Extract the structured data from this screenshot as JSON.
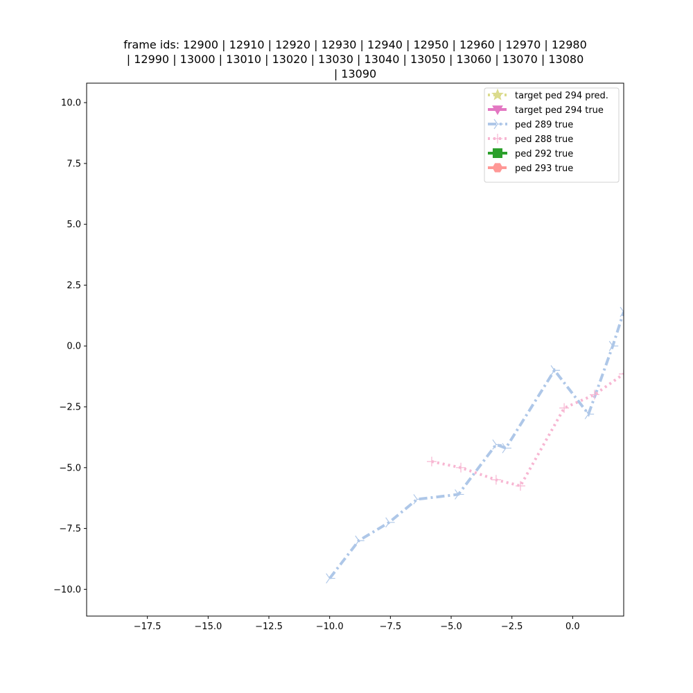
{
  "chart_data": {
    "type": "line",
    "title_lines": [
      "frame ids: 12900 | 12910 | 12920 | 12930 | 12940 | 12950 | 12960 | 12970 | 12980",
      "| 12990 | 13000 | 13010 | 13020 | 13030 | 13040 | 13050 | 13060 | 13070 | 13080",
      "| 13090"
    ],
    "xlim": [
      -20.0,
      2.1
    ],
    "ylim": [
      -11.1,
      10.8
    ],
    "xticks": [
      -17.5,
      -15.0,
      -12.5,
      -10.0,
      -7.5,
      -5.0,
      -2.5,
      0.0
    ],
    "yticks": [
      -10.0,
      -7.5,
      -5.0,
      -2.5,
      0.0,
      2.5,
      5.0,
      7.5,
      10.0
    ],
    "xtick_labels": [
      "−17.5",
      "−15.0",
      "−12.5",
      "−10.0",
      "−7.5",
      "−5.0",
      "−2.5",
      "0.0"
    ],
    "ytick_labels": [
      "−10.0",
      "−7.5",
      "−5.0",
      "−2.5",
      "0.0",
      "2.5",
      "5.0",
      "7.5",
      "10.0"
    ],
    "grid": false,
    "legend_position": "top-right",
    "series": [
      {
        "name": "target ped 294 pred.",
        "color": "#dbdb8d",
        "dash": "dotted",
        "marker": "star",
        "points": []
      },
      {
        "name": "target ped 294 true",
        "color": "#e377c2",
        "dash": "dashed",
        "marker": "triangle-down",
        "points": []
      },
      {
        "name": "ped 289 true",
        "color": "#aec7e8",
        "dash": "dashdot",
        "marker": "tri-right",
        "points": [
          [
            -10.0,
            -9.55
          ],
          [
            -8.8,
            -8.0
          ],
          [
            -7.55,
            -7.25
          ],
          [
            -6.4,
            -6.3
          ],
          [
            -4.7,
            -6.1
          ],
          [
            -3.15,
            -4.05
          ],
          [
            -2.75,
            -4.2
          ],
          [
            -0.75,
            -1.0
          ],
          [
            0.65,
            -2.8
          ],
          [
            1.65,
            0.0
          ],
          [
            2.1,
            1.4
          ]
        ]
      },
      {
        "name": "ped 288 true",
        "color": "#f7b6d2",
        "dash": "dotted",
        "marker": "plus",
        "points": [
          [
            -5.8,
            -4.75
          ],
          [
            -4.6,
            -5.0
          ],
          [
            -3.15,
            -5.5
          ],
          [
            -2.15,
            -5.75
          ],
          [
            -0.35,
            -2.55
          ],
          [
            0.9,
            -2.0
          ],
          [
            2.1,
            -1.15
          ]
        ]
      },
      {
        "name": "ped 292 true",
        "color": "#2ca02c",
        "dash": "solid",
        "marker": "square",
        "points": []
      },
      {
        "name": "ped 293 true",
        "color": "#ff9896",
        "dash": "dashed",
        "marker": "hexagon",
        "points": []
      }
    ]
  }
}
